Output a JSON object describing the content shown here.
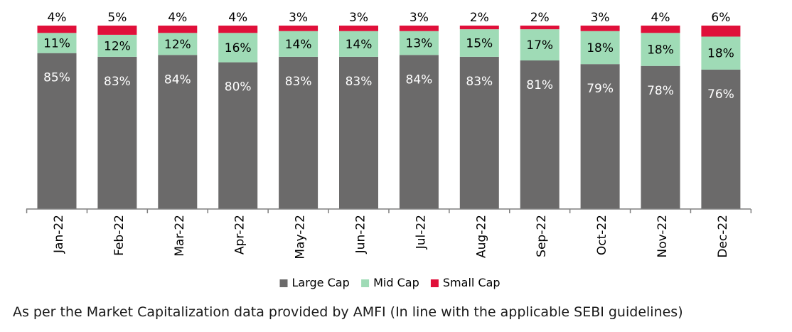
{
  "chart_data": {
    "type": "bar",
    "stacked": true,
    "categories": [
      "Jan-22",
      "Feb-22",
      "Mar-22",
      "Apr-22",
      "May-22",
      "Jun-22",
      "Jul-22",
      "Aug-22",
      "Sep-22",
      "Oct-22",
      "Nov-22",
      "Dec-22"
    ],
    "series": [
      {
        "name": "Large Cap",
        "color": "#6b6a6a",
        "values": [
          85,
          83,
          84,
          80,
          83,
          83,
          84,
          83,
          81,
          79,
          78,
          76
        ],
        "labels": [
          "85%",
          "83%",
          "84%",
          "80%",
          "83%",
          "83%",
          "84%",
          "83%",
          "81%",
          "79%",
          "78%",
          "76%"
        ]
      },
      {
        "name": "Mid Cap",
        "color": "#9fdbb6",
        "values": [
          11,
          12,
          12,
          16,
          14,
          14,
          13,
          15,
          17,
          18,
          18,
          18
        ],
        "labels": [
          "11%",
          "12%",
          "12%",
          "16%",
          "14%",
          "14%",
          "13%",
          "15%",
          "17%",
          "18%",
          "18%",
          "18%"
        ]
      },
      {
        "name": "Small Cap",
        "color": "#e0103a",
        "values": [
          4,
          5,
          4,
          4,
          3,
          3,
          3,
          2,
          2,
          3,
          4,
          6
        ],
        "labels": [
          "4%",
          "5%",
          "4%",
          "4%",
          "3%",
          "3%",
          "3%",
          "2%",
          "2%",
          "3%",
          "4%",
          "6%"
        ]
      }
    ],
    "ylim": [
      0,
      100
    ],
    "legend_position": "bottom-center",
    "grid": false,
    "title": "",
    "xlabel": "",
    "ylabel": ""
  },
  "footnote": "As per the Market Capitalization data provided by AMFI (In line with the applicable SEBI guidelines)"
}
